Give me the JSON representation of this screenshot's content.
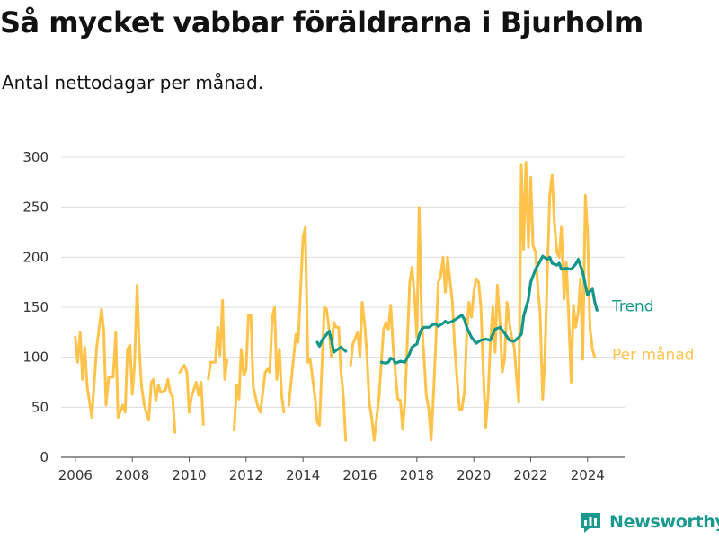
{
  "title": "Så mycket vabbar föräldrarna i Bjurholm",
  "subtitle": "Antal nettodagar per månad.",
  "brand": {
    "name": "Newsworthy",
    "icon": "newsworthy-logo-icon"
  },
  "chart_data": {
    "type": "line",
    "ylim": [
      0,
      300
    ],
    "xlim": [
      2005.5,
      2025.3
    ],
    "grid": true,
    "yticks": [
      0,
      50,
      100,
      150,
      200,
      250,
      300
    ],
    "xticks": [
      2006,
      2008,
      2010,
      2012,
      2014,
      2016,
      2018,
      2020,
      2022,
      2024
    ],
    "colors": {
      "monthly": "#ffc24a",
      "trend": "#14968a"
    },
    "series": [
      {
        "name": "Per månad",
        "segments": [
          [
            [
              2006.0,
              120
            ],
            [
              2006.08,
              95
            ],
            [
              2006.17,
              125
            ],
            [
              2006.25,
              78
            ],
            [
              2006.33,
              110
            ],
            [
              2006.42,
              70
            ],
            [
              2006.58,
              40
            ],
            [
              2006.75,
              110
            ],
            [
              2006.92,
              148
            ],
            [
              2007.0,
              125
            ],
            [
              2007.08,
              52
            ],
            [
              2007.17,
              80
            ],
            [
              2007.33,
              80
            ],
            [
              2007.42,
              125
            ],
            [
              2007.5,
              40
            ],
            [
              2007.67,
              52
            ],
            [
              2007.75,
              45
            ],
            [
              2007.83,
              108
            ],
            [
              2007.92,
              112
            ],
            [
              2008.0,
              63
            ],
            [
              2008.08,
              93
            ],
            [
              2008.17,
              172
            ],
            [
              2008.25,
              105
            ],
            [
              2008.33,
              70
            ],
            [
              2008.42,
              52
            ],
            [
              2008.58,
              37
            ],
            [
              2008.67,
              75
            ],
            [
              2008.75,
              78
            ],
            [
              2008.83,
              57
            ],
            [
              2008.92,
              72
            ],
            [
              2009.0,
              65
            ],
            [
              2009.17,
              67
            ],
            [
              2009.25,
              78
            ],
            [
              2009.33,
              65
            ],
            [
              2009.42,
              60
            ],
            [
              2009.5,
              25
            ]
          ],
          [
            [
              2009.67,
              85
            ],
            [
              2009.83,
              92
            ],
            [
              2009.92,
              85
            ],
            [
              2010.0,
              45
            ],
            [
              2010.08,
              60
            ],
            [
              2010.25,
              75
            ],
            [
              2010.33,
              62
            ],
            [
              2010.42,
              75
            ],
            [
              2010.5,
              33
            ]
          ],
          [
            [
              2010.67,
              78
            ],
            [
              2010.75,
              95
            ],
            [
              2010.83,
              95
            ],
            [
              2010.92,
              95
            ],
            [
              2011.0,
              130
            ],
            [
              2011.08,
              102
            ],
            [
              2011.17,
              157
            ],
            [
              2011.25,
              78
            ],
            [
              2011.33,
              97
            ]
          ],
          [
            [
              2011.58,
              27
            ],
            [
              2011.67,
              72
            ],
            [
              2011.75,
              58
            ],
            [
              2011.83,
              108
            ],
            [
              2011.92,
              82
            ],
            [
              2012.0,
              87
            ],
            [
              2012.08,
              142
            ],
            [
              2012.17,
              142
            ],
            [
              2012.25,
              70
            ],
            [
              2012.42,
              50
            ],
            [
              2012.5,
              45
            ],
            [
              2012.67,
              85
            ],
            [
              2012.75,
              88
            ],
            [
              2012.83,
              85
            ],
            [
              2012.92,
              140
            ],
            [
              2013.0,
              150
            ],
            [
              2013.08,
              78
            ],
            [
              2013.17,
              108
            ],
            [
              2013.25,
              62
            ],
            [
              2013.33,
              45
            ]
          ],
          [
            [
              2013.5,
              52
            ],
            [
              2013.67,
              100
            ],
            [
              2013.75,
              123
            ],
            [
              2013.83,
              115
            ],
            [
              2013.92,
              170
            ],
            [
              2014.0,
              220
            ],
            [
              2014.08,
              230
            ],
            [
              2014.17,
              95
            ],
            [
              2014.25,
              98
            ],
            [
              2014.42,
              60
            ],
            [
              2014.5,
              35
            ],
            [
              2014.58,
              32
            ],
            [
              2014.75,
              150
            ],
            [
              2014.83,
              148
            ],
            [
              2014.92,
              127
            ],
            [
              2015.0,
              100
            ],
            [
              2015.08,
              135
            ],
            [
              2015.17,
              130
            ],
            [
              2015.25,
              130
            ],
            [
              2015.33,
              87
            ],
            [
              2015.42,
              60
            ],
            [
              2015.5,
              17
            ]
          ],
          [
            [
              2015.67,
              92
            ],
            [
              2015.75,
              113
            ],
            [
              2015.92,
              125
            ],
            [
              2016.0,
              100
            ],
            [
              2016.08,
              155
            ],
            [
              2016.17,
              132
            ],
            [
              2016.25,
              100
            ],
            [
              2016.33,
              55
            ],
            [
              2016.42,
              38
            ],
            [
              2016.5,
              17
            ],
            [
              2016.67,
              60
            ],
            [
              2016.83,
              128
            ],
            [
              2016.92,
              135
            ],
            [
              2017.0,
              128
            ],
            [
              2017.08,
              152
            ],
            [
              2017.17,
              108
            ],
            [
              2017.33,
              58
            ],
            [
              2017.42,
              57
            ],
            [
              2017.5,
              28
            ],
            [
              2017.58,
              55
            ],
            [
              2017.75,
              175
            ],
            [
              2017.83,
              190
            ],
            [
              2017.92,
              160
            ],
            [
              2018.0,
              120
            ],
            [
              2018.08,
              250
            ],
            [
              2018.17,
              135
            ],
            [
              2018.25,
              100
            ],
            [
              2018.33,
              62
            ],
            [
              2018.42,
              48
            ],
            [
              2018.5,
              17
            ],
            [
              2018.58,
              60
            ],
            [
              2018.67,
              118
            ],
            [
              2018.75,
              175
            ],
            [
              2018.83,
              180
            ],
            [
              2018.92,
              200
            ],
            [
              2019.0,
              165
            ],
            [
              2019.08,
              200
            ],
            [
              2019.17,
              175
            ],
            [
              2019.25,
              155
            ],
            [
              2019.33,
              110
            ],
            [
              2019.42,
              75
            ],
            [
              2019.5,
              48
            ],
            [
              2019.58,
              48
            ],
            [
              2019.67,
              65
            ],
            [
              2019.75,
              122
            ],
            [
              2019.83,
              155
            ],
            [
              2019.92,
              140
            ],
            [
              2020.0,
              165
            ],
            [
              2020.08,
              178
            ],
            [
              2020.17,
              175
            ],
            [
              2020.25,
              150
            ],
            [
              2020.33,
              88
            ],
            [
              2020.42,
              30
            ],
            [
              2020.5,
              60
            ],
            [
              2020.58,
              112
            ],
            [
              2020.67,
              150
            ],
            [
              2020.75,
              105
            ],
            [
              2020.83,
              172
            ],
            [
              2020.92,
              135
            ],
            [
              2021.0,
              85
            ],
            [
              2021.08,
              98
            ],
            [
              2021.17,
              155
            ],
            [
              2021.25,
              135
            ],
            [
              2021.33,
              120
            ],
            [
              2021.42,
              110
            ],
            [
              2021.5,
              80
            ],
            [
              2021.58,
              55
            ],
            [
              2021.67,
              292
            ],
            [
              2021.75,
              208
            ],
            [
              2021.83,
              295
            ],
            [
              2021.92,
              210
            ],
            [
              2022.0,
              280
            ],
            [
              2022.08,
              212
            ],
            [
              2022.17,
              205
            ],
            [
              2022.25,
              170
            ],
            [
              2022.33,
              145
            ],
            [
              2022.42,
              58
            ],
            [
              2022.5,
              100
            ],
            [
              2022.58,
              182
            ],
            [
              2022.67,
              262
            ],
            [
              2022.75,
              282
            ],
            [
              2022.83,
              235
            ],
            [
              2022.92,
              205
            ],
            [
              2023.0,
              200
            ],
            [
              2023.08,
              230
            ],
            [
              2023.17,
              158
            ],
            [
              2023.25,
              195
            ],
            [
              2023.33,
              145
            ],
            [
              2023.42,
              75
            ],
            [
              2023.5,
              152
            ],
            [
              2023.58,
              130
            ],
            [
              2023.67,
              145
            ],
            [
              2023.75,
              178
            ],
            [
              2023.83,
              98
            ],
            [
              2023.92,
              262
            ],
            [
              2024.0,
              225
            ],
            [
              2024.08,
              130
            ],
            [
              2024.17,
              108
            ],
            [
              2024.25,
              100
            ]
          ]
        ]
      },
      {
        "name": "Trend",
        "segments": [
          [
            [
              2014.5,
              115
            ],
            [
              2014.58,
              111
            ],
            [
              2014.67,
              117
            ],
            [
              2014.75,
              120
            ],
            [
              2014.92,
              126
            ],
            [
              2015.0,
              117
            ],
            [
              2015.08,
              105
            ],
            [
              2015.17,
              107
            ],
            [
              2015.33,
              110
            ],
            [
              2015.5,
              106
            ]
          ],
          [
            [
              2016.75,
              95
            ],
            [
              2016.92,
              94
            ],
            [
              2017.0,
              95
            ],
            [
              2017.08,
              99
            ],
            [
              2017.17,
              98
            ],
            [
              2017.25,
              94
            ],
            [
              2017.42,
              96
            ],
            [
              2017.58,
              95
            ],
            [
              2017.75,
              104
            ],
            [
              2017.83,
              110
            ],
            [
              2017.92,
              112
            ],
            [
              2018.0,
              113
            ],
            [
              2018.08,
              122
            ],
            [
              2018.17,
              128
            ],
            [
              2018.25,
              130
            ],
            [
              2018.42,
              130
            ],
            [
              2018.58,
              133
            ],
            [
              2018.67,
              133
            ],
            [
              2018.75,
              131
            ],
            [
              2018.92,
              134
            ],
            [
              2019.0,
              136
            ],
            [
              2019.08,
              134
            ],
            [
              2019.25,
              136
            ],
            [
              2019.42,
              139
            ],
            [
              2019.58,
              142
            ],
            [
              2019.67,
              138
            ],
            [
              2019.75,
              130
            ],
            [
              2019.92,
              120
            ],
            [
              2020.08,
              114
            ],
            [
              2020.25,
              117
            ],
            [
              2020.42,
              118
            ],
            [
              2020.58,
              117
            ],
            [
              2020.75,
              128
            ],
            [
              2020.92,
              130
            ],
            [
              2021.08,
              124
            ],
            [
              2021.25,
              117
            ],
            [
              2021.42,
              116
            ],
            [
              2021.58,
              120
            ],
            [
              2021.67,
              123
            ],
            [
              2021.75,
              141
            ],
            [
              2021.92,
              158
            ],
            [
              2022.0,
              175
            ],
            [
              2022.17,
              188
            ],
            [
              2022.33,
              196
            ],
            [
              2022.42,
              201
            ],
            [
              2022.58,
              198
            ],
            [
              2022.67,
              200
            ],
            [
              2022.75,
              194
            ],
            [
              2022.92,
              192
            ],
            [
              2023.0,
              194
            ],
            [
              2023.08,
              188
            ],
            [
              2023.25,
              189
            ],
            [
              2023.42,
              188
            ],
            [
              2023.58,
              193
            ],
            [
              2023.67,
              198
            ],
            [
              2023.83,
              185
            ],
            [
              2023.92,
              172
            ],
            [
              2024.0,
              162
            ],
            [
              2024.08,
              166
            ],
            [
              2024.17,
              168
            ],
            [
              2024.25,
              155
            ],
            [
              2024.33,
              147
            ]
          ]
        ]
      }
    ]
  }
}
